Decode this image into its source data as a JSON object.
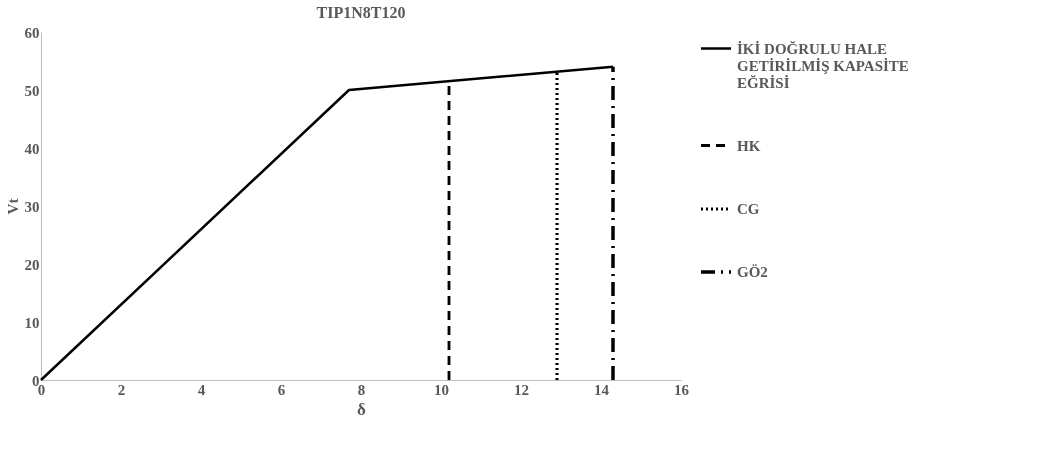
{
  "chart_data": {
    "type": "line",
    "title": "TIP1N8T120",
    "xlabel": "δ",
    "ylabel": "Vt",
    "xlim": [
      0,
      16
    ],
    "xticks": [
      0,
      2,
      4,
      6,
      8,
      10,
      12,
      14,
      16
    ],
    "ylim": [
      0,
      60
    ],
    "yticks": [
      0,
      10,
      20,
      30,
      40,
      50,
      60
    ],
    "grid": false,
    "legend": "right",
    "marker": "none",
    "series": [
      {
        "name": "İKİ DOĞRULU HALE GETİRİLMİŞ KAPASİTE EĞRİSİ",
        "color": "#000000",
        "line_style": "solid",
        "x": [
          0,
          7.7,
          14.3
        ],
        "values": [
          0,
          50,
          54
        ]
      },
      {
        "name": "HK",
        "color": "#000000",
        "line_style": "dashed",
        "x": [
          10.2,
          10.2
        ],
        "values": [
          0,
          51.7
        ]
      },
      {
        "name": "CG",
        "color": "#000000",
        "line_style": "dotted",
        "x": [
          12.9,
          12.9
        ],
        "values": [
          0,
          53.1
        ]
      },
      {
        "name": "GÖ2",
        "color": "#000000",
        "line_style": "dashdot",
        "x": [
          14.3,
          14.3
        ],
        "values": [
          0,
          54
        ]
      }
    ]
  }
}
